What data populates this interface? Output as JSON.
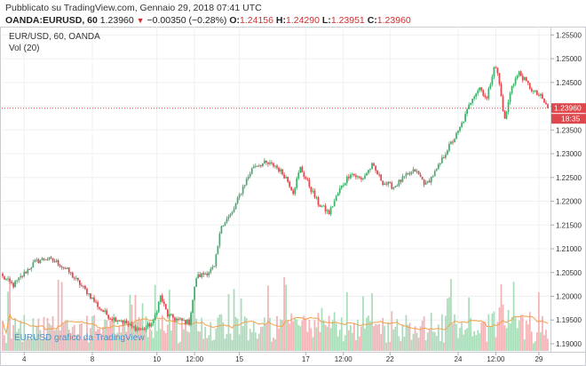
{
  "header": {
    "published": "Pubblicato su TradingView.com, Gennaio 29, 2018 07:41 UTC",
    "symbol": "OANDA:EURUSD, 60",
    "last": "1.23960",
    "direction_glyph": "▼",
    "change": "−0.00350 (−0.28%)",
    "o_label": "O:",
    "o_value": "1.24156",
    "h_label": "H:",
    "h_value": "1.24290",
    "l_label": "L:",
    "l_value": "1.23951",
    "c_label": "C:",
    "c_value": "1.23960"
  },
  "pane": {
    "title": "EUR/USD, 60, OANDA",
    "volume_label": "Vol (20)",
    "watermark": "EURUSD grafico da TradingView"
  },
  "colors": {
    "up": "#3fae6a",
    "down": "#e0474c",
    "up_volume": "#a8dcb9",
    "down_volume": "#f2b3b6",
    "volume_ma": "#f5a04a",
    "last_price_line": "#e0474c",
    "grid": "#eef0f3",
    "axis_text": "#333333"
  },
  "chart_data": {
    "type": "candlestick",
    "y_axis": {
      "ticks": [
        "1.25500",
        "1.25000",
        "1.24500",
        "1.24000",
        "1.23500",
        "1.23000",
        "1.22500",
        "1.22000",
        "1.21500",
        "1.21000",
        "1.20500",
        "1.20000",
        "1.19500",
        "1.19000"
      ],
      "range": [
        1.1885,
        1.256
      ]
    },
    "x_axis": {
      "ticks": [
        {
          "label": "4",
          "bar": 12
        },
        {
          "label": "8",
          "bar": 50
        },
        {
          "label": "10",
          "bar": 86
        },
        {
          "label": "12:00",
          "bar": 107
        },
        {
          "label": "15",
          "bar": 132
        },
        {
          "label": "17",
          "bar": 169
        },
        {
          "label": "12:00",
          "bar": 190
        },
        {
          "label": "22",
          "bar": 216
        },
        {
          "label": "24",
          "bar": 254
        },
        {
          "label": "12:00",
          "bar": 275
        },
        {
          "label": "29",
          "bar": 299
        }
      ]
    },
    "last_price": 1.2396,
    "last_price_label": "1.23960",
    "countdown_label": "18:35",
    "anchors": [
      [
        0,
        1.204
      ],
      [
        6,
        1.2023
      ],
      [
        12,
        1.2048
      ],
      [
        18,
        1.2072
      ],
      [
        24,
        1.208
      ],
      [
        30,
        1.2072
      ],
      [
        36,
        1.2055
      ],
      [
        42,
        1.203
      ],
      [
        48,
        1.2005
      ],
      [
        54,
        1.1975
      ],
      [
        60,
        1.1955
      ],
      [
        66,
        1.195
      ],
      [
        72,
        1.1935
      ],
      [
        78,
        1.193
      ],
      [
        84,
        1.1945
      ],
      [
        88,
        1.2
      ],
      [
        92,
        1.196
      ],
      [
        98,
        1.195
      ],
      [
        104,
        1.1945
      ],
      [
        108,
        1.204
      ],
      [
        114,
        1.205
      ],
      [
        118,
        1.206
      ],
      [
        122,
        1.215
      ],
      [
        128,
        1.2175
      ],
      [
        134,
        1.223
      ],
      [
        140,
        1.2275
      ],
      [
        146,
        1.228
      ],
      [
        152,
        1.2275
      ],
      [
        158,
        1.225
      ],
      [
        162,
        1.222
      ],
      [
        166,
        1.227
      ],
      [
        170,
        1.224
      ],
      [
        176,
        1.2195
      ],
      [
        182,
        1.2175
      ],
      [
        188,
        1.2225
      ],
      [
        194,
        1.226
      ],
      [
        200,
        1.2245
      ],
      [
        206,
        1.2275
      ],
      [
        212,
        1.224
      ],
      [
        218,
        1.223
      ],
      [
        224,
        1.225
      ],
      [
        230,
        1.2265
      ],
      [
        236,
        1.2235
      ],
      [
        242,
        1.2265
      ],
      [
        248,
        1.231
      ],
      [
        254,
        1.2345
      ],
      [
        258,
        1.238
      ],
      [
        262,
        1.242
      ],
      [
        266,
        1.244
      ],
      [
        270,
        1.2415
      ],
      [
        274,
        1.2485
      ],
      [
        276,
        1.247
      ],
      [
        280,
        1.237
      ],
      [
        284,
        1.2445
      ],
      [
        288,
        1.247
      ],
      [
        292,
        1.245
      ],
      [
        296,
        1.243
      ],
      [
        300,
        1.242
      ],
      [
        304,
        1.2396
      ]
    ],
    "total_bars": 305
  }
}
